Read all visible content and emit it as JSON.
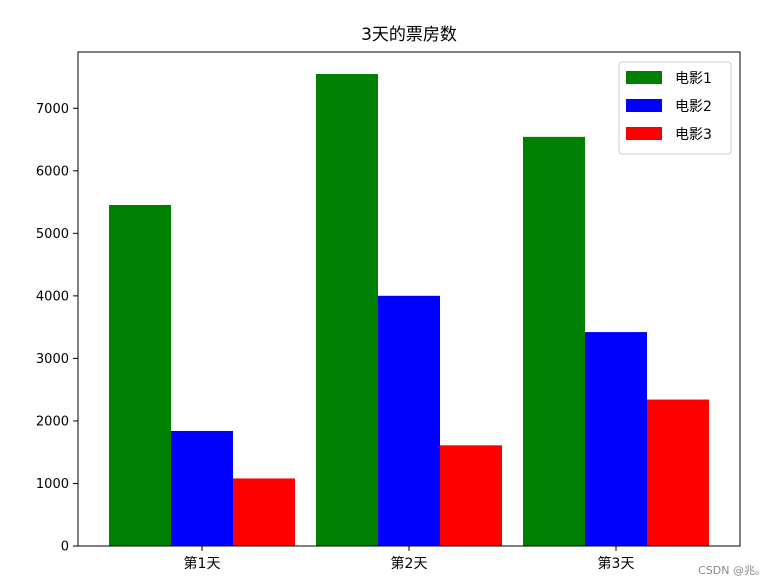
{
  "chart_data": {
    "type": "bar",
    "title": "3天的票房数",
    "xlabel": "",
    "ylabel": "",
    "categories": [
      "第1天",
      "第2天",
      "第3天"
    ],
    "series": [
      {
        "name": "电影1",
        "color": "#008000",
        "values": [
          5453,
          7548,
          6543
        ]
      },
      {
        "name": "电影2",
        "color": "#0000ff",
        "values": [
          1840,
          4001,
          3421
        ]
      },
      {
        "name": "电影3",
        "color": "#ff0000",
        "values": [
          1080,
          1610,
          2342
        ]
      }
    ],
    "ylim": [
      0,
      7900
    ],
    "yticks": [
      0,
      1000,
      2000,
      3000,
      4000,
      5000,
      6000,
      7000
    ],
    "grid": false,
    "legend_position": "top-right"
  },
  "watermark": "CSDN @兆。"
}
